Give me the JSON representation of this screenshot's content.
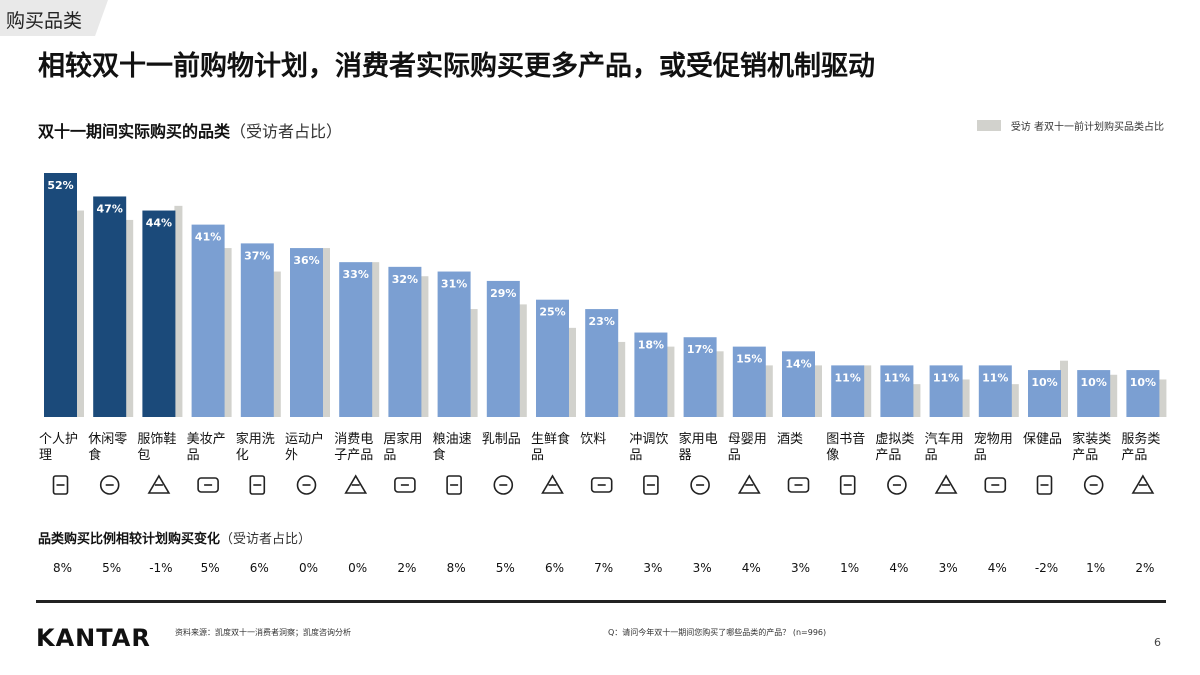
{
  "section_tag": "购买品类",
  "headline": "相较双十一前购物计划，消费者实际购买更多产品，或受促销机制驱动",
  "chart_data": {
    "type": "bar",
    "title": "双十一期间实际购买的品类",
    "title_suffix": "（受访者占比）",
    "legend": "受访 者双十一前计划购买品类占比",
    "categories": [
      [
        "个人护",
        "理"
      ],
      [
        "休闲零",
        "食"
      ],
      [
        "服饰鞋",
        "包"
      ],
      [
        "美妆产",
        "品"
      ],
      [
        "家用洗",
        "化"
      ],
      [
        "运动户",
        "外"
      ],
      [
        "消费电",
        "子产品"
      ],
      [
        "居家用",
        "品"
      ],
      [
        "粮油速",
        "食"
      ],
      [
        "乳制品"
      ],
      [
        "生鲜食",
        "品"
      ],
      [
        "饮料"
      ],
      [
        "冲调饮",
        "品"
      ],
      [
        "家用电",
        "器"
      ],
      [
        "母婴用",
        "品"
      ],
      [
        "酒类"
      ],
      [
        "图书音",
        "像"
      ],
      [
        "虚拟类",
        "产品"
      ],
      [
        "汽车用",
        "品"
      ],
      [
        "宠物用",
        "品"
      ],
      [
        "保健品"
      ],
      [
        "家装类",
        "产品"
      ],
      [
        "服务类",
        "产品"
      ]
    ],
    "actual_labels": [
      "52%",
      "47%",
      "44%",
      "41%",
      "37%",
      "36%",
      "33%",
      "32%",
      "31%",
      "29%",
      "25%",
      "23%",
      "18%",
      "17%",
      "15%",
      "14%",
      "11%",
      "11%",
      "11%",
      "11%",
      "10%",
      "10%",
      "10%"
    ],
    "series": [
      {
        "values": [
          52,
          47,
          44,
          41,
          37,
          36,
          33,
          32,
          31,
          29,
          25,
          23,
          18,
          17,
          15,
          14,
          11,
          11,
          11,
          11,
          10,
          10,
          10
        ]
      },
      {
        "values": [
          44,
          42,
          45,
          36,
          31,
          36,
          33,
          30,
          23,
          24,
          19,
          16,
          15,
          14,
          11,
          11,
          11,
          7,
          8,
          7,
          12,
          9,
          8
        ]
      }
    ],
    "highlight_count": 3,
    "colors": {
      "highlight": "#1b4a7a",
      "actual": "#7b9fd2",
      "plan": "#d2d2cd",
      "label": "#ffffff"
    },
    "ylim": [
      0,
      55
    ]
  },
  "icons": [
    "lotion-icon",
    "candy-icon",
    "tshirt-icon",
    "brush-icon",
    "spray-bottle-icon",
    "dumbbell-icon",
    "earbuds-icon",
    "lamp-icon",
    "bowl-icon",
    "milk-carton-icon",
    "crab-icon",
    "drink-cup-icon",
    "coffee-cup-icon",
    "fridge-icon",
    "baby-icon",
    "chef-icon",
    "book-icon",
    "smartphone-icon",
    "car-icon",
    "dog-icon",
    "pill-icon",
    "building-icon",
    "service-icon"
  ],
  "change_section": {
    "title": "品类购买比例相较计划购买变化",
    "title_suffix": "（受访者占比）",
    "values": [
      "8%",
      "5%",
      "-1%",
      "5%",
      "6%",
      "0%",
      "0%",
      "2%",
      "8%",
      "5%",
      "6%",
      "7%",
      "3%",
      "3%",
      "4%",
      "3%",
      "1%",
      "4%",
      "3%",
      "4%",
      "-2%",
      "1%",
      "2%"
    ]
  },
  "footer": {
    "logo": "KANTAR",
    "source": "资料来源：凯度双十一消费者洞察；凯度咨询分析",
    "question": "Q：请问今年双十一期间您购买了哪些品类的产品？ (n=996)",
    "page": "6"
  }
}
